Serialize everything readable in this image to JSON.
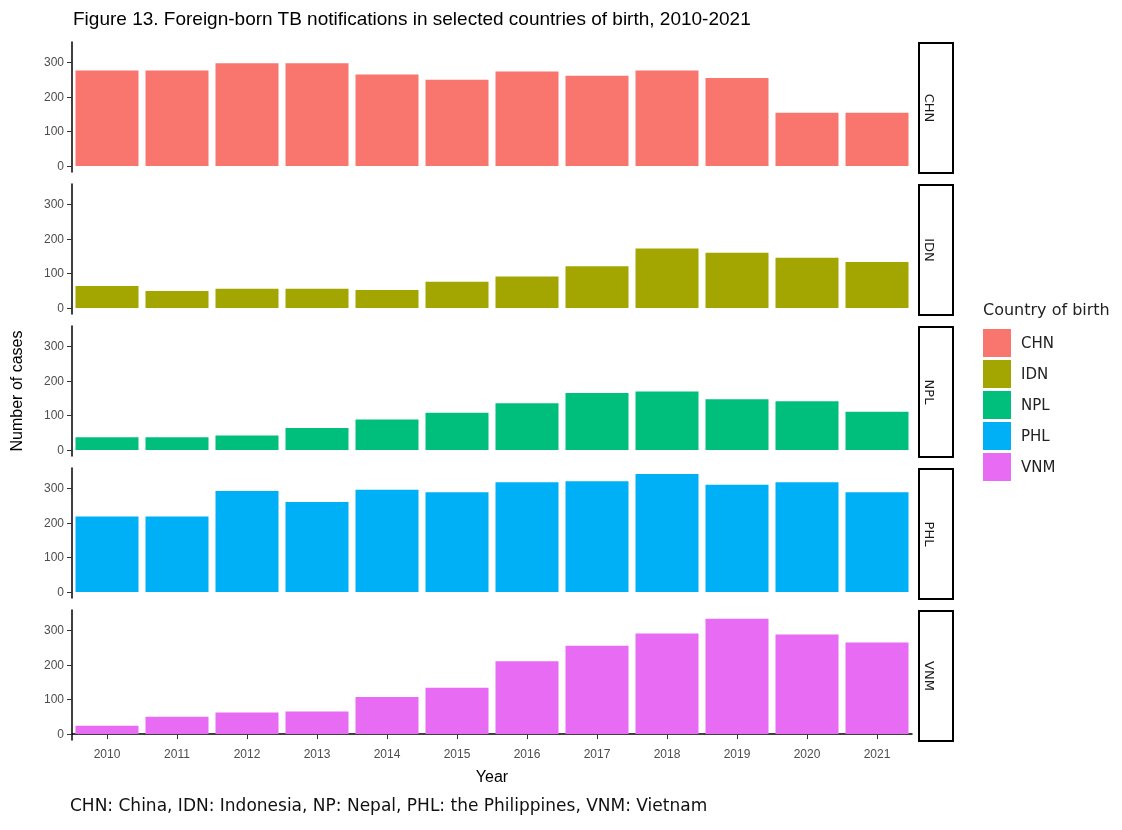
{
  "chart_data": [
    {
      "type": "bar",
      "title": "Figure 13. Foreign-born TB notifications in selected countries of birth, 2010-2021",
      "legend_title": "Country of birth",
      "legend": "right",
      "tick_labels": "y",
      "grid": false,
      "categories": [
        "2010",
        "2011",
        "2012",
        "2013",
        "2014",
        "2015",
        "2016",
        "2017",
        "2018",
        "2019",
        "2020",
        "2021"
      ],
      "series": [
        {
          "name": "CHN",
          "color": "#f8766d",
          "values": [
            276,
            276,
            297,
            297,
            264,
            249,
            273,
            261,
            276,
            254,
            154,
            154
          ]
        }
      ],
      "ylim": [
        -17,
        358
      ],
      "yticks": [
        0,
        100,
        200,
        300
      ]
    },
    {
      "type": "bar",
      "legend": "right",
      "tick_labels": "y",
      "grid": false,
      "categories": [
        "2010",
        "2011",
        "2012",
        "2013",
        "2014",
        "2015",
        "2016",
        "2017",
        "2018",
        "2019",
        "2020",
        "2021"
      ],
      "series": [
        {
          "name": "IDN",
          "color": "#a3a500",
          "values": [
            64,
            49,
            56,
            56,
            52,
            76,
            91,
            121,
            172,
            160,
            145,
            133
          ]
        }
      ],
      "ylim": [
        -17,
        358
      ],
      "yticks": [
        0,
        100,
        200,
        300
      ]
    },
    {
      "type": "bar",
      "legend": "right",
      "tick_labels": "y",
      "grid": false,
      "ylabel": "Number of cases",
      "categories": [
        "2010",
        "2011",
        "2012",
        "2013",
        "2014",
        "2015",
        "2016",
        "2017",
        "2018",
        "2019",
        "2020",
        "2021"
      ],
      "series": [
        {
          "name": "NPL",
          "color": "#00bf7d",
          "values": [
            37,
            37,
            42,
            64,
            88,
            108,
            135,
            165,
            169,
            147,
            141,
            111
          ]
        }
      ],
      "ylim": [
        -17,
        358
      ],
      "yticks": [
        0,
        100,
        200,
        300
      ]
    },
    {
      "type": "bar",
      "legend": "right",
      "tick_labels": "y",
      "grid": false,
      "categories": [
        "2010",
        "2011",
        "2012",
        "2013",
        "2014",
        "2015",
        "2016",
        "2017",
        "2018",
        "2019",
        "2020",
        "2021"
      ],
      "series": [
        {
          "name": "PHL",
          "color": "#00b0f6",
          "values": [
            218,
            218,
            292,
            260,
            295,
            288,
            317,
            320,
            341,
            310,
            317,
            288
          ]
        }
      ],
      "ylim": [
        -17,
        358
      ],
      "yticks": [
        0,
        100,
        200,
        300
      ]
    },
    {
      "type": "bar",
      "legend": "right",
      "grid": false,
      "xlabel": "Year",
      "annotations": [
        "CHN: China, IDN: Indonesia, NP: Nepal, PHL: the Philippines, VNM: Vietnam"
      ],
      "categories": [
        "2010",
        "2011",
        "2012",
        "2013",
        "2014",
        "2015",
        "2016",
        "2017",
        "2018",
        "2019",
        "2020",
        "2021"
      ],
      "series": [
        {
          "name": "VNM",
          "color": "#e76bf3",
          "values": [
            24,
            50,
            62,
            65,
            107,
            134,
            210,
            255,
            290,
            333,
            287,
            264
          ]
        }
      ],
      "ylim": [
        -17,
        358
      ],
      "yticks": [
        0,
        100,
        200,
        300
      ]
    }
  ]
}
